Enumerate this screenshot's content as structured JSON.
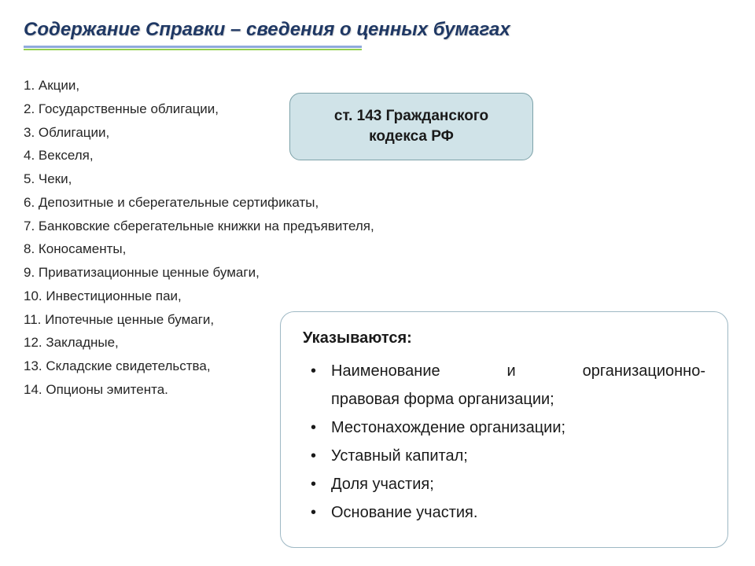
{
  "title": "Содержание Справки – сведения о ценных бумагах",
  "colors": {
    "title_color": "#1f3864",
    "underline_top": "#8faadc",
    "underline_bottom": "#92d050",
    "callout_bg": "#d0e3e8",
    "callout_border": "#7da2a9",
    "info_border": "#9eb8c4",
    "text_color": "#262626"
  },
  "list": {
    "items": [
      "1. Акции,",
      "2. Государственные облигации,",
      "3. Облигации,",
      "4. Векселя,",
      "5. Чеки,",
      "6. Депозитные и сберегательные сертификаты,",
      "7. Банковские сберегательные книжки на предъявителя,",
      "8. Коносаменты,",
      "9. Приватизационные ценные бумаги,",
      "10. Инвестиционные паи,",
      "11. Ипотечные ценные бумаги,",
      "12. Закладные,",
      "13. Складские свидетельства,",
      "14. Опционы эмитента."
    ]
  },
  "callout": {
    "line1": "ст. 143 Гражданского",
    "line2": "кодекса РФ"
  },
  "info": {
    "heading": "Указываются:",
    "items": [
      {
        "line1": "Наименование и организационно-",
        "line2": "правовая форма организации;"
      },
      {
        "line1": "Местонахождение организации;"
      },
      {
        "line1": "Уставный капитал;"
      },
      {
        "line1": "Доля участия;"
      },
      {
        "line1": "Основание участия."
      }
    ]
  }
}
